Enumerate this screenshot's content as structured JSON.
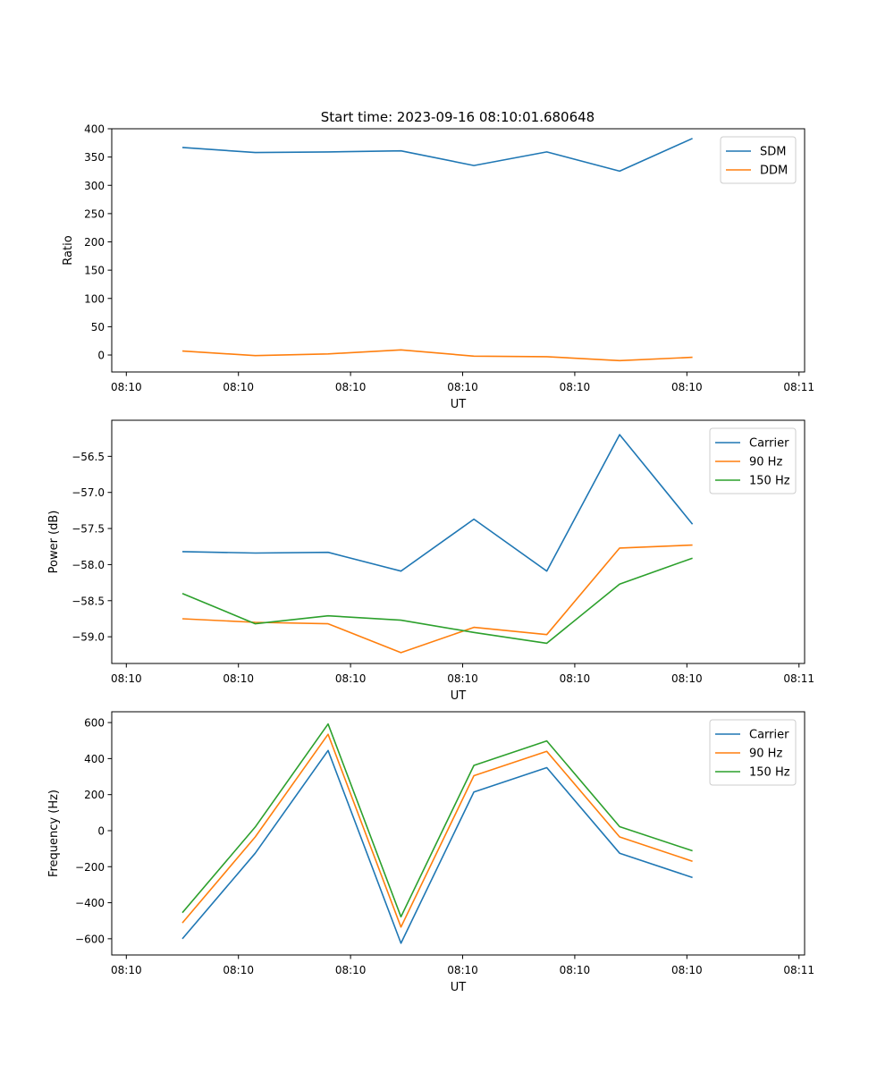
{
  "title": "Start time: 2023-09-16 08:10:01.680648",
  "colors": {
    "blue": "#1f77b4",
    "orange": "#ff7f0e",
    "green": "#2ca02c",
    "axis": "#000000",
    "legend_border": "#cccccc"
  },
  "chart_data": [
    {
      "type": "line",
      "title": "Start time: 2023-09-16 08:10:01.680648",
      "xlabel": "UT",
      "ylabel": "Ratio",
      "xlim": [
        -0.13,
        6.05
      ],
      "ylim": [
        -30,
        400
      ],
      "xticks": [
        0,
        1,
        2,
        3,
        4,
        5,
        6
      ],
      "xtick_labels": [
        "08:10",
        "08:10",
        "08:10",
        "08:10",
        "08:10",
        "08:10",
        "08:11"
      ],
      "yticks": [
        0,
        50,
        100,
        150,
        200,
        250,
        300,
        350,
        400
      ],
      "ytick_labels": [
        "0",
        "50",
        "100",
        "150",
        "200",
        "250",
        "300",
        "350",
        "400"
      ],
      "legend_position": "top-right",
      "x": [
        0.5,
        1.15,
        1.8,
        2.45,
        3.1,
        3.75,
        4.4,
        5.05
      ],
      "series": [
        {
          "name": "SDM",
          "color": "#1f77b4",
          "values": [
            367,
            358,
            359,
            361,
            335,
            359,
            325,
            383
          ]
        },
        {
          "name": "DDM",
          "color": "#ff7f0e",
          "values": [
            7,
            -1,
            2,
            9,
            -2,
            -3,
            -10,
            -4
          ]
        }
      ]
    },
    {
      "type": "line",
      "xlabel": "UT",
      "ylabel": "Power (dB)",
      "xlim": [
        -0.13,
        6.05
      ],
      "ylim": [
        -59.37,
        -56.0
      ],
      "xticks": [
        0,
        1,
        2,
        3,
        4,
        5,
        6
      ],
      "xtick_labels": [
        "08:10",
        "08:10",
        "08:10",
        "08:10",
        "08:10",
        "08:10",
        "08:11"
      ],
      "yticks": [
        -59.0,
        -58.5,
        -58.0,
        -57.5,
        -57.0,
        -56.5
      ],
      "ytick_labels": [
        "−59.0",
        "−58.5",
        "−58.0",
        "−57.5",
        "−57.0",
        "−56.5"
      ],
      "legend_position": "top-right",
      "x": [
        0.5,
        1.15,
        1.8,
        2.45,
        3.1,
        3.75,
        4.4,
        5.05
      ],
      "series": [
        {
          "name": "Carrier",
          "color": "#1f77b4",
          "values": [
            -57.82,
            -57.84,
            -57.83,
            -58.09,
            -57.37,
            -58.09,
            -56.2,
            -57.44
          ]
        },
        {
          "name": "90 Hz",
          "color": "#ff7f0e",
          "values": [
            -58.75,
            -58.8,
            -58.82,
            -59.22,
            -58.87,
            -58.97,
            -57.77,
            -57.73
          ]
        },
        {
          "name": "150 Hz",
          "color": "#2ca02c",
          "values": [
            -58.4,
            -58.82,
            -58.71,
            -58.77,
            -58.94,
            -59.09,
            -58.27,
            -57.91
          ]
        }
      ]
    },
    {
      "type": "line",
      "xlabel": "UT",
      "ylabel": "Frequency (Hz)",
      "xlim": [
        -0.13,
        6.05
      ],
      "ylim": [
        -690,
        660
      ],
      "xticks": [
        0,
        1,
        2,
        3,
        4,
        5,
        6
      ],
      "xtick_labels": [
        "08:10",
        "08:10",
        "08:10",
        "08:10",
        "08:10",
        "08:10",
        "08:11"
      ],
      "yticks": [
        -600,
        -400,
        -200,
        0,
        200,
        400,
        600
      ],
      "ytick_labels": [
        "−600",
        "−400",
        "−200",
        "0",
        "200",
        "400",
        "600"
      ],
      "legend_position": "top-right",
      "x": [
        0.5,
        1.15,
        1.8,
        2.45,
        3.1,
        3.75,
        4.4,
        5.05
      ],
      "series": [
        {
          "name": "Carrier",
          "color": "#1f77b4",
          "values": [
            -600,
            -125,
            445,
            -625,
            215,
            350,
            -125,
            -260
          ]
        },
        {
          "name": "90 Hz",
          "color": "#ff7f0e",
          "values": [
            -512,
            -35,
            535,
            -535,
            305,
            440,
            -35,
            -170
          ]
        },
        {
          "name": "150 Hz",
          "color": "#2ca02c",
          "values": [
            -455,
            20,
            592,
            -478,
            362,
            498,
            22,
            -112
          ]
        }
      ]
    }
  ]
}
